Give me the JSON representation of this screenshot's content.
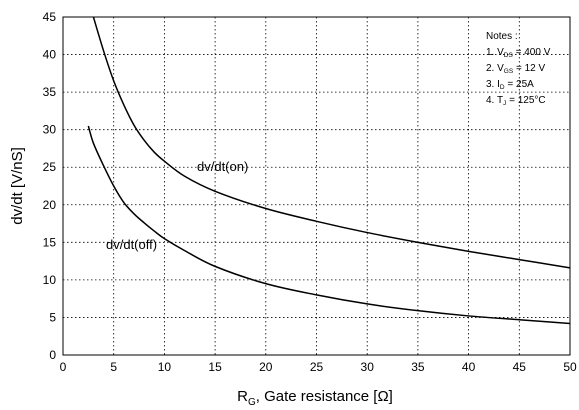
{
  "chart_data": {
    "type": "line",
    "title": "",
    "xlabel": {
      "main": "R",
      "sub": "G",
      "rest": ", Gate resistance [Ω]"
    },
    "ylabel": "dv/dt [V/nS]",
    "xlim": [
      0,
      50
    ],
    "ylim": [
      0,
      45
    ],
    "xticks": [
      0,
      5,
      10,
      15,
      20,
      25,
      30,
      35,
      40,
      45,
      50
    ],
    "yticks": [
      0,
      5,
      10,
      15,
      20,
      25,
      30,
      35,
      40,
      45
    ],
    "grid": true,
    "series": [
      {
        "name": "dv/dt(on)",
        "color": "#000000",
        "x": [
          3.0,
          4.0,
          5.0,
          6.0,
          7.0,
          8.0,
          9.0,
          10.0,
          12.0,
          15.0,
          20.0,
          25.0,
          30.0,
          35.0,
          40.0,
          45.0,
          50.0
        ],
        "y": [
          45.0,
          40.5,
          36.5,
          33.3,
          30.6,
          28.6,
          27.0,
          25.8,
          23.8,
          21.8,
          19.5,
          17.8,
          16.3,
          15.0,
          13.8,
          12.7,
          11.6
        ]
      },
      {
        "name": "dv/dt(off)",
        "color": "#000000",
        "x": [
          2.5,
          3.0,
          4.0,
          5.0,
          6.0,
          7.0,
          8.0,
          9.0,
          10.0,
          12.0,
          15.0,
          20.0,
          25.0,
          30.0,
          35.0,
          40.0,
          45.0,
          50.0
        ],
        "y": [
          30.5,
          28.2,
          25.2,
          22.5,
          20.3,
          18.8,
          17.6,
          16.5,
          15.5,
          13.9,
          11.8,
          9.5,
          8.0,
          6.8,
          5.9,
          5.2,
          4.7,
          4.2
        ]
      }
    ],
    "notes": {
      "header": "Notes :",
      "items": [
        {
          "prefix": "1. V",
          "sub": "DS",
          "suffix": " = 400 V"
        },
        {
          "prefix": "2. V",
          "sub": "GS",
          "suffix": " = 12 V"
        },
        {
          "prefix": "3. I",
          "sub": "D",
          "suffix": " = 25A"
        },
        {
          "prefix": "4. T",
          "sub": "J",
          "suffix": " = 125°C"
        }
      ]
    }
  }
}
